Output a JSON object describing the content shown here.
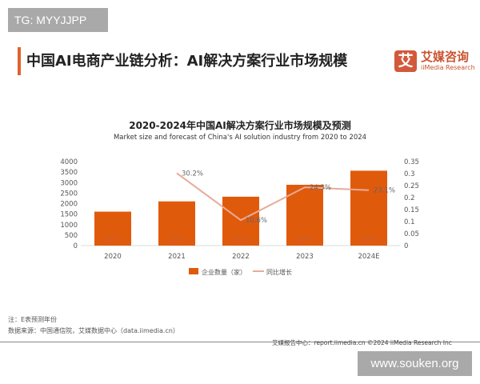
{
  "watermark_top": "TG: MYYJJPP",
  "header": {
    "title": "中国AI电商产业链分析：AI解决方案行业市场规模",
    "logo_glyph": "艾",
    "logo_cn": "艾媒咨询",
    "logo_en": "iiMedia Research"
  },
  "chart_data": {
    "type": "bar",
    "title": "2020-2024年中国AI解决方案行业市场规模及预测",
    "subtitle": "Market size and forecast of China's AI solution industry from 2020 to 2024",
    "categories": [
      "2020",
      "2021",
      "2022",
      "2023",
      "2024E"
    ],
    "series": [
      {
        "name": "企业数量（家）",
        "type": "bar",
        "axis": "left",
        "values": [
          1617,
          2106,
          2329,
          2896,
          3566
        ],
        "color": "#e05a0c"
      },
      {
        "name": "同比增长",
        "type": "line",
        "axis": "right",
        "values": [
          null,
          0.302,
          0.106,
          0.243,
          0.231
        ],
        "labels": [
          "",
          "30.2%",
          "10.6%",
          "24.3%",
          "23.1%"
        ],
        "color": "#e8ab98"
      }
    ],
    "left_axis": {
      "range": [
        0,
        4000
      ],
      "ticks": [
        "0",
        "500",
        "1000",
        "1500",
        "2000",
        "2500",
        "3000",
        "3500",
        "4000"
      ]
    },
    "right_axis": {
      "range": [
        0,
        0.35
      ],
      "ticks": [
        "0",
        "0.05",
        "0.1",
        "0.15",
        "0.2",
        "0.25",
        "0.3",
        "0.35"
      ]
    },
    "grid": false,
    "legend_placement": "bottom"
  },
  "notes": {
    "note": "注：E表预测年份",
    "source": "数据来源：中国通信院，艾媒数据中心（data.iimedia.cn）"
  },
  "footer": "艾媒报告中心：report.iimedia.cn     ©2024  iiMedia Research  Inc",
  "watermark_bottom": "www.souken.org"
}
